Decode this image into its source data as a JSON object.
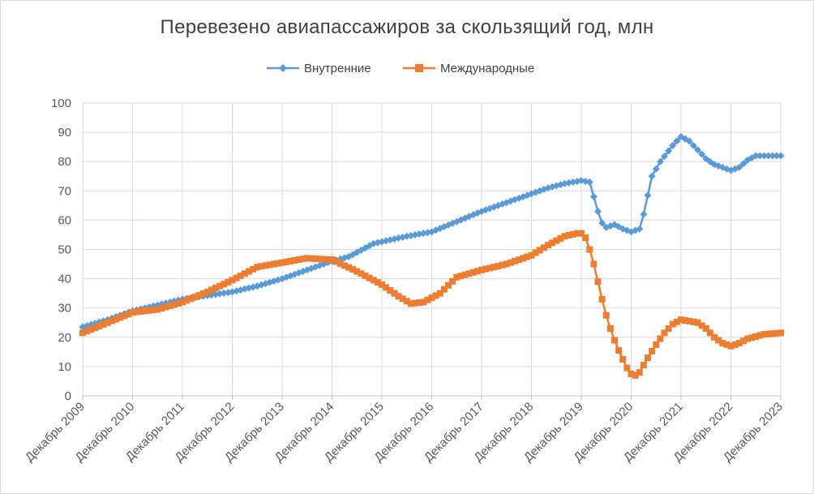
{
  "chart_data": {
    "type": "line",
    "title": "Перевезено авиапассажиров за скользящий год, млн",
    "xlabel": "",
    "ylabel": "",
    "ylim": [
      0,
      100
    ],
    "yticks": [
      0,
      10,
      20,
      30,
      40,
      50,
      60,
      70,
      80,
      90,
      100
    ],
    "grid": true,
    "legend_position": "top",
    "x_tick_labels": [
      "Декабрь 2009",
      "Декабрь 2010",
      "Декабрь 2011",
      "Декабрь 2012",
      "Декабрь 2013",
      "Декабрь 2014",
      "Декабрь 2015",
      "Декабрь 2016",
      "Декабрь 2017",
      "Декабрь 2018",
      "Декабрь 2019",
      "Декабрь 2020",
      "Декабрь 2021",
      "Декабрь 2022",
      "Декабрь 2023"
    ],
    "x_tick_index": [
      0,
      12,
      24,
      36,
      48,
      60,
      72,
      84,
      96,
      108,
      120,
      132,
      144,
      156,
      168
    ],
    "series": [
      {
        "name": "Внутренние",
        "color": "#5b9bd5",
        "marker": "diamond",
        "anchors": [
          [
            0,
            23.5
          ],
          [
            6,
            26
          ],
          [
            12,
            29
          ],
          [
            24,
            33
          ],
          [
            36,
            35.5
          ],
          [
            42,
            37.5
          ],
          [
            48,
            40
          ],
          [
            54,
            43
          ],
          [
            60,
            46
          ],
          [
            64,
            47.5
          ],
          [
            70,
            52
          ],
          [
            78,
            54.5
          ],
          [
            84,
            56
          ],
          [
            96,
            63
          ],
          [
            108,
            69
          ],
          [
            112,
            71
          ],
          [
            116,
            72.5
          ],
          [
            120,
            73.5
          ],
          [
            122,
            73
          ],
          [
            123,
            68
          ],
          [
            124,
            63
          ],
          [
            125,
            59
          ],
          [
            126,
            57.5
          ],
          [
            128,
            58.5
          ],
          [
            130,
            57
          ],
          [
            132,
            56
          ],
          [
            134,
            57
          ],
          [
            135,
            62
          ],
          [
            136,
            68.5
          ],
          [
            137,
            75
          ],
          [
            139,
            80
          ],
          [
            142,
            85.5
          ],
          [
            144,
            88.5
          ],
          [
            146,
            87
          ],
          [
            148,
            84
          ],
          [
            150,
            81
          ],
          [
            152,
            79
          ],
          [
            156,
            77
          ],
          [
            158,
            78
          ],
          [
            160,
            80.5
          ],
          [
            162,
            82
          ],
          [
            168,
            82
          ]
        ]
      },
      {
        "name": "Международные",
        "color": "#ed7d31",
        "marker": "square",
        "anchors": [
          [
            0,
            21.5
          ],
          [
            6,
            25
          ],
          [
            12,
            28.5
          ],
          [
            18,
            29.5
          ],
          [
            24,
            32
          ],
          [
            30,
            35.5
          ],
          [
            36,
            39.5
          ],
          [
            42,
            44
          ],
          [
            48,
            45.5
          ],
          [
            54,
            47
          ],
          [
            60,
            46.5
          ],
          [
            66,
            42.5
          ],
          [
            72,
            38
          ],
          [
            76,
            34
          ],
          [
            79,
            31.5
          ],
          [
            82,
            32
          ],
          [
            86,
            35
          ],
          [
            90,
            40.5
          ],
          [
            96,
            43
          ],
          [
            102,
            45
          ],
          [
            108,
            48
          ],
          [
            112,
            51.5
          ],
          [
            116,
            54.5
          ],
          [
            119,
            55.5
          ],
          [
            120,
            55.5
          ],
          [
            121,
            54
          ],
          [
            122,
            50
          ],
          [
            123,
            45
          ],
          [
            124,
            39
          ],
          [
            125,
            33
          ],
          [
            126,
            27.5
          ],
          [
            127,
            23
          ],
          [
            128,
            19
          ],
          [
            129,
            15.5
          ],
          [
            130,
            12.5
          ],
          [
            131,
            9.5
          ],
          [
            132,
            7.5
          ],
          [
            133,
            7
          ],
          [
            134,
            8
          ],
          [
            135,
            10.5
          ],
          [
            136,
            13
          ],
          [
            138,
            17.5
          ],
          [
            140,
            21.5
          ],
          [
            142,
            24.5
          ],
          [
            144,
            26
          ],
          [
            148,
            25
          ],
          [
            150,
            23
          ],
          [
            152,
            20
          ],
          [
            154,
            18
          ],
          [
            156,
            17
          ],
          [
            158,
            18
          ],
          [
            160,
            19.5
          ],
          [
            164,
            21
          ],
          [
            168,
            21.5
          ]
        ]
      }
    ]
  }
}
